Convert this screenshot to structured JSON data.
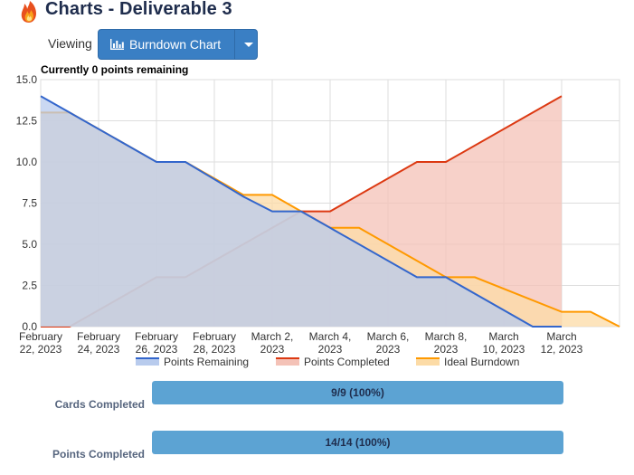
{
  "header": {
    "title": "Charts - Deliverable 3",
    "logo_icon": "flame-icon"
  },
  "view_selector": {
    "label": "Viewing",
    "selected": "Burndown Chart",
    "icon": "bar-chart-icon",
    "button_color": "#3a7fc4"
  },
  "chart_caption": "Currently 0 points remaining",
  "chart_data": {
    "type": "area",
    "title": "",
    "xlabel": "",
    "ylabel": "",
    "x_range": [
      "2023-02-22",
      "2023-03-14"
    ],
    "ylim": [
      0,
      15
    ],
    "y_ticks": [
      "0.0",
      "2.5",
      "5.0",
      "7.5",
      "10.0",
      "12.5",
      "15.0"
    ],
    "x_ticks": [
      {
        "date": "2023-02-22",
        "line1": "February",
        "line2": "22, 2023"
      },
      {
        "date": "2023-02-24",
        "line1": "February",
        "line2": "24, 2023"
      },
      {
        "date": "2023-02-26",
        "line1": "February",
        "line2": "26, 2023"
      },
      {
        "date": "2023-02-28",
        "line1": "February",
        "line2": "28, 2023"
      },
      {
        "date": "2023-03-02",
        "line1": "March 2,",
        "line2": "2023"
      },
      {
        "date": "2023-03-04",
        "line1": "March 4,",
        "line2": "2023"
      },
      {
        "date": "2023-03-06",
        "line1": "March 6,",
        "line2": "2023"
      },
      {
        "date": "2023-03-08",
        "line1": "March 8,",
        "line2": "2023"
      },
      {
        "date": "2023-03-10",
        "line1": "March",
        "line2": "10, 2023"
      },
      {
        "date": "2023-03-12",
        "line1": "March",
        "line2": "12, 2023"
      }
    ],
    "grid": true,
    "legend_position": "bottom",
    "series": [
      {
        "name": "Points Completed",
        "stroke": "#dc3912",
        "fill": "#f4c2b7",
        "points": [
          [
            "2023-02-22",
            0
          ],
          [
            "2023-02-23",
            0
          ],
          [
            "2023-02-26",
            3
          ],
          [
            "2023-02-27",
            3
          ],
          [
            "2023-03-02",
            6
          ],
          [
            "2023-03-03",
            7
          ],
          [
            "2023-03-04",
            7
          ],
          [
            "2023-03-07",
            10
          ],
          [
            "2023-03-08",
            10
          ],
          [
            "2023-03-12",
            14
          ]
        ]
      },
      {
        "name": "Ideal Burndown",
        "stroke": "#ff9900",
        "fill": "#fcdba6",
        "points": [
          [
            "2023-02-22",
            13
          ],
          [
            "2023-02-23",
            13
          ],
          [
            "2023-02-26",
            10
          ],
          [
            "2023-02-27",
            10
          ],
          [
            "2023-03-01",
            8
          ],
          [
            "2023-03-02",
            8
          ],
          [
            "2023-03-03",
            7
          ],
          [
            "2023-03-04",
            6
          ],
          [
            "2023-03-05",
            6
          ],
          [
            "2023-03-08",
            3
          ],
          [
            "2023-03-09",
            3
          ],
          [
            "2023-03-12",
            0.9
          ],
          [
            "2023-03-13",
            0.9
          ],
          [
            "2023-03-14",
            0
          ]
        ]
      },
      {
        "name": "Points Remaining",
        "stroke": "#3366cc",
        "fill": "#b8cbed",
        "points": [
          [
            "2023-02-22",
            14
          ],
          [
            "2023-02-23",
            13
          ],
          [
            "2023-02-26",
            10
          ],
          [
            "2023-02-27",
            10
          ],
          [
            "2023-03-01",
            7.9
          ],
          [
            "2023-03-02",
            7
          ],
          [
            "2023-03-03",
            7
          ],
          [
            "2023-03-04",
            6
          ],
          [
            "2023-03-07",
            3
          ],
          [
            "2023-03-08",
            3
          ],
          [
            "2023-03-11",
            0
          ],
          [
            "2023-03-12",
            0
          ]
        ]
      }
    ],
    "legend_order": [
      "Points Remaining",
      "Points Completed",
      "Ideal Burndown"
    ]
  },
  "stats": [
    {
      "label": "Cards Completed",
      "value_text": "9/9 (100%)",
      "fraction": 1.0
    },
    {
      "label": "Points Completed",
      "value_text": "14/14 (100%)",
      "fraction": 1.0
    }
  ]
}
